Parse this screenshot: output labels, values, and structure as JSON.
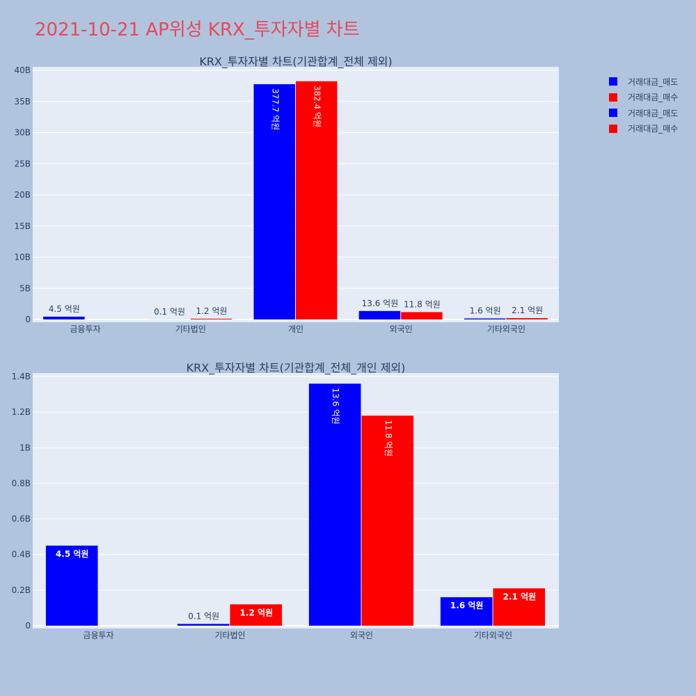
{
  "title": "2021-10-21 AP위성 KRX_투자자별 차트",
  "legend": [
    {
      "label": "거래대금_매도",
      "color": "#0000ff"
    },
    {
      "label": "거래대금_매수",
      "color": "#ff0000"
    },
    {
      "label": "거래대금_매도",
      "color": "#0000ff"
    },
    {
      "label": "거래대금_매수",
      "color": "#ff0000"
    }
  ],
  "chart_data": [
    {
      "type": "bar",
      "title": "KRX_투자자별 차트(기관합계_전체 제외)",
      "categories": [
        "금융투자",
        "기타법인",
        "개인",
        "외국인",
        "기타외국인"
      ],
      "series": [
        {
          "name": "거래대금_매도",
          "color": "#0000ff",
          "values": [
            450000000,
            10000000,
            37770000000,
            1360000000,
            160000000
          ],
          "labels": [
            "4.5 억원",
            "0.1 억원",
            "377.7 억원",
            "13.6 억원",
            "1.6 억원"
          ]
        },
        {
          "name": "거래대금_매수",
          "color": "#ff0000",
          "values": [
            0,
            120000000,
            38240000000,
            1180000000,
            210000000
          ],
          "labels": [
            "",
            "1.2 억원",
            "382.4 억원",
            "11.8 억원",
            "2.1 억원"
          ]
        }
      ],
      "ylim": [
        0,
        40000000000
      ],
      "yticks": [
        0,
        5000000000,
        10000000000,
        15000000000,
        20000000000,
        25000000000,
        30000000000,
        35000000000,
        40000000000
      ],
      "yticklabels": [
        "0",
        "5B",
        "10B",
        "15B",
        "20B",
        "25B",
        "30B",
        "35B",
        "40B"
      ],
      "grid": true
    },
    {
      "type": "bar",
      "title": "KRX_투자자별 차트(기관합계_전체_개인 제외)",
      "categories": [
        "금융투자",
        "기타법인",
        "외국인",
        "기타외국인"
      ],
      "series": [
        {
          "name": "거래대금_매도",
          "color": "#0000ff",
          "values": [
            450000000,
            10000000,
            1360000000,
            160000000
          ],
          "labels": [
            "4.5 억원",
            "0.1 억원",
            "13.6 억원",
            "1.6 억원"
          ]
        },
        {
          "name": "거래대금_매수",
          "color": "#ff0000",
          "values": [
            0,
            120000000,
            1180000000,
            210000000
          ],
          "labels": [
            "",
            "1.2 억원",
            "11.8 억원",
            "2.1 억원"
          ]
        }
      ],
      "ylim": [
        0,
        1400000000
      ],
      "yticks": [
        0,
        200000000,
        400000000,
        600000000,
        800000000,
        1000000000,
        1200000000,
        1400000000
      ],
      "yticklabels": [
        "0",
        "0.2B",
        "0.4B",
        "0.6B",
        "0.8B",
        "1B",
        "1.2B",
        "1.4B"
      ],
      "grid": true
    }
  ]
}
